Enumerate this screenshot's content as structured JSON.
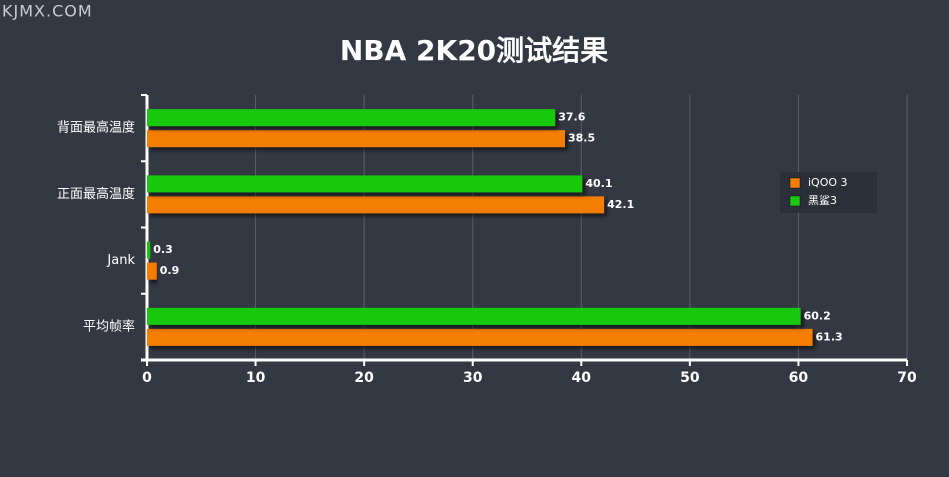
{
  "watermark": "KJMX.COM",
  "chart_data": {
    "type": "barh",
    "title": "NBA 2K20测试结果",
    "categories": [
      "背面最高温度",
      "正面最高温度",
      "Jank",
      "平均帧率"
    ],
    "series": [
      {
        "name": "iQOO 3",
        "color": "#f57d00",
        "values": [
          38.5,
          42.1,
          0.9,
          61.3
        ]
      },
      {
        "name": "黑鲨3",
        "color": "#19c90f",
        "values": [
          37.6,
          40.1,
          0.3,
          60.2
        ]
      }
    ],
    "xlim": [
      0,
      70
    ],
    "xticks": [
      0,
      10,
      20,
      30,
      40,
      50,
      60,
      70
    ],
    "grid": true,
    "legend": "right"
  }
}
